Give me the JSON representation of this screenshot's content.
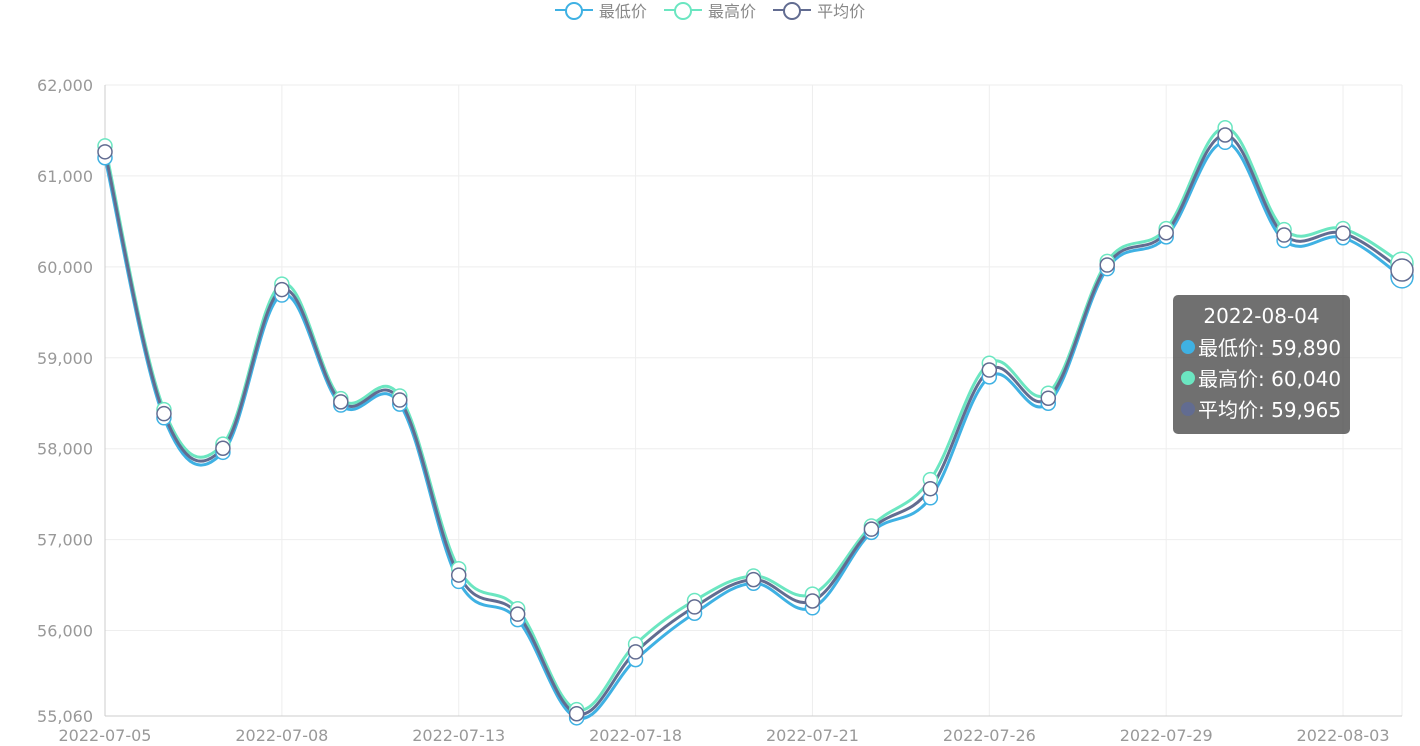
{
  "legend": [
    {
      "label": "最低价",
      "color": "#3fb1e3"
    },
    {
      "label": "最高价",
      "color": "#6be6c1"
    },
    {
      "label": "平均价",
      "color": "#626c91"
    }
  ],
  "tooltip": {
    "title": "2022-08-04",
    "rows": [
      {
        "label": "最低价: 59,890",
        "color": "#3fb1e3"
      },
      {
        "label": "最高价: 60,040",
        "color": "#6be6c1"
      },
      {
        "label": "平均价: 59,965",
        "color": "#626c91"
      }
    ]
  },
  "chart_data": {
    "type": "line",
    "smooth": true,
    "x": [
      "2022-07-05",
      "2022-07-06",
      "2022-07-07",
      "2022-07-08",
      "2022-07-11",
      "2022-07-12",
      "2022-07-13",
      "2022-07-14",
      "2022-07-15",
      "2022-07-18",
      "2022-07-19",
      "2022-07-20",
      "2022-07-21",
      "2022-07-22",
      "2022-07-25",
      "2022-07-26",
      "2022-07-27",
      "2022-07-28",
      "2022-07-29",
      "2022-08-01",
      "2022-08-02",
      "2022-08-03",
      "2022-08-04"
    ],
    "x_tick_labels": [
      "2022-07-05",
      "2022-07-08",
      "2022-07-13",
      "2022-07-18",
      "2022-07-21",
      "2022-07-26",
      "2022-07-29",
      "2022-08-03"
    ],
    "x_tick_indices": [
      0,
      3,
      6,
      9,
      12,
      15,
      18,
      21
    ],
    "series": [
      {
        "name": "最低价",
        "color": "#3fb1e3",
        "values": [
          61200,
          58340,
          57960,
          59690,
          58480,
          58490,
          56540,
          56120,
          55040,
          55680,
          56190,
          56520,
          56250,
          57080,
          57460,
          58790,
          58500,
          59980,
          60330,
          61370,
          60290,
          60320,
          59890
        ]
      },
      {
        "name": "最高价",
        "color": "#6be6c1",
        "values": [
          61330,
          58430,
          58050,
          59810,
          58550,
          58580,
          56680,
          56240,
          55130,
          55850,
          56330,
          56600,
          56400,
          57150,
          57660,
          58940,
          58610,
          60060,
          60420,
          61530,
          60410,
          60420,
          60040
        ]
      },
      {
        "name": "平均价",
        "color": "#626c91",
        "values": [
          61265,
          58385,
          58005,
          59750,
          58515,
          58535,
          56610,
          56180,
          55085,
          55765,
          56260,
          56560,
          56325,
          57115,
          57560,
          58865,
          58555,
          60020,
          60375,
          61450,
          60350,
          60370,
          59965
        ]
      }
    ],
    "ylim": [
      55060,
      62000
    ],
    "y_ticks": [
      55060,
      56000,
      57000,
      58000,
      59000,
      60000,
      61000,
      62000
    ],
    "y_tick_labels": [
      "55,060",
      "56,000",
      "57,000",
      "58,000",
      "59,000",
      "60,000",
      "61,000",
      "62,000"
    ],
    "grid": true,
    "legend_position": "top-center",
    "highlighted_index": 22
  }
}
